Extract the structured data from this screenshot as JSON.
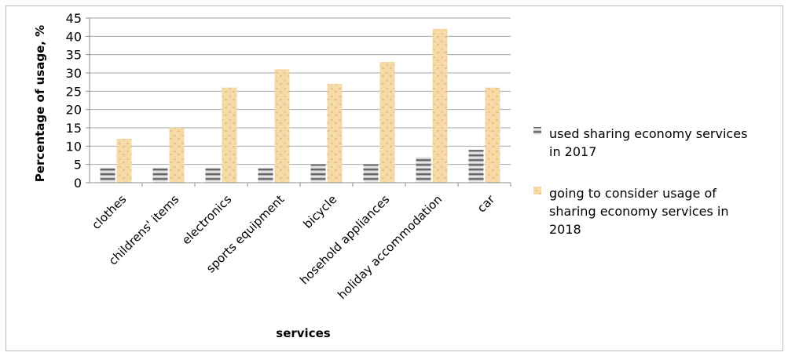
{
  "chart_data": {
    "type": "bar",
    "title": "",
    "xlabel": "services",
    "ylabel": "Percentage of usage, %",
    "ylim": [
      0,
      45
    ],
    "yticks": [
      0,
      5,
      10,
      15,
      20,
      25,
      30,
      35,
      40,
      45
    ],
    "grid": true,
    "legend_position": "right",
    "categories": [
      "clothes",
      "childrens' items",
      "electronics",
      "sports equipment",
      "bicycle",
      "hosehold appliances",
      "holiday accommodation",
      "car"
    ],
    "series": [
      {
        "name": "used sharing economy services in 2017",
        "values": [
          4,
          4,
          4,
          4,
          5,
          5,
          7,
          9
        ],
        "color": "#8c8c8c",
        "pattern": "striped-gray"
      },
      {
        "name": "going to consider usage of sharing economy services in 2018",
        "values": [
          12,
          15,
          26,
          31,
          27,
          33,
          42,
          26
        ],
        "color": "#f2d59f",
        "pattern": "tan-texture"
      }
    ],
    "legend_lines": [
      [
        "used sharing economy services",
        "in 2017"
      ],
      [
        "going to consider usage of",
        "sharing economy services in",
        "2018"
      ]
    ]
  }
}
